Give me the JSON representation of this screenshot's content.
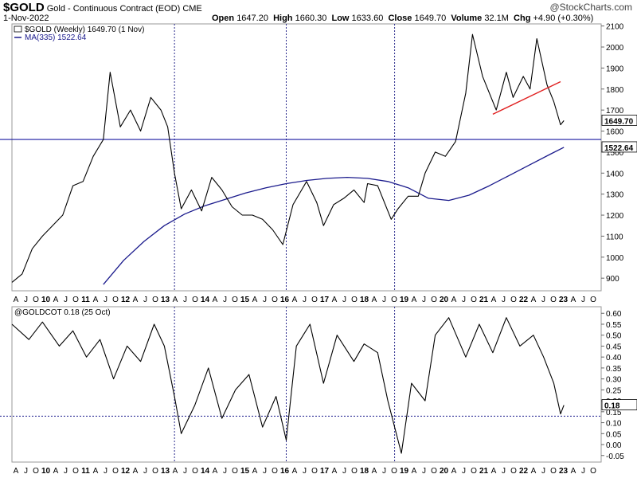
{
  "header": {
    "symbol": "$GOLD",
    "description": "Gold - Continuous Contract (EOD)",
    "exchange": "CME",
    "date": "1-Nov-2022",
    "watermark": "@StockCharts.com",
    "open_label": "Open",
    "open": "1647.20",
    "high_label": "High",
    "high": "1660.30",
    "low_label": "Low",
    "low": "1633.60",
    "close_label": "Close",
    "close": "1649.70",
    "volume_label": "Volume",
    "volume": "32.1M",
    "chg_label": "Chg",
    "chg": "+4.90 (+0.30%)"
  },
  "chart_data": [
    {
      "type": "line",
      "title": "$GOLD (Weekly) 1649.70 (1 Nov)",
      "legend": [
        {
          "text": "$GOLD (Weekly) 1649.70 (1 Nov)",
          "color": "#000000"
        },
        {
          "text": "MA(335) 1522.64",
          "color": "#1a1a8c"
        }
      ],
      "ylim": [
        840,
        2110
      ],
      "yticks": [
        900,
        1000,
        1100,
        1200,
        1300,
        1400,
        1500,
        1600,
        1700,
        1800,
        1900,
        2000,
        2100
      ],
      "last_label": "1649.70",
      "ma_label": "1522.64",
      "hline": 1560,
      "vlines": [
        "2013-04",
        "2016-01",
        "2018-09"
      ],
      "xlim": [
        "2009-04",
        "2023-10"
      ],
      "x_tick_labels": [
        "A",
        "J",
        "O",
        "10",
        "A",
        "J",
        "O",
        "11",
        "A",
        "J",
        "O",
        "12",
        "A",
        "J",
        "O",
        "13",
        "A",
        "J",
        "O",
        "14",
        "A",
        "J",
        "O",
        "15",
        "A",
        "J",
        "O",
        "16",
        "A",
        "J",
        "O",
        "17",
        "A",
        "J",
        "O",
        "18",
        "A",
        "J",
        "O",
        "19",
        "A",
        "J",
        "O",
        "20",
        "A",
        "J",
        "O",
        "21",
        "A",
        "J",
        "O",
        "22",
        "A",
        "J",
        "O",
        "23",
        "A",
        "J",
        "O"
      ],
      "series": [
        {
          "name": "$GOLD (Weekly)",
          "color": "#000000",
          "x": [
            "2009-04",
            "2009-07",
            "2009-10",
            "2010-01",
            "2010-04",
            "2010-07",
            "2010-10",
            "2011-01",
            "2011-04",
            "2011-07",
            "2011-09",
            "2011-12",
            "2012-03",
            "2012-06",
            "2012-09",
            "2012-12",
            "2013-02",
            "2013-04",
            "2013-06",
            "2013-09",
            "2013-12",
            "2014-03",
            "2014-06",
            "2014-09",
            "2014-12",
            "2015-03",
            "2015-06",
            "2015-09",
            "2015-12",
            "2016-03",
            "2016-07",
            "2016-10",
            "2016-12",
            "2017-03",
            "2017-06",
            "2017-09",
            "2017-12",
            "2018-01",
            "2018-04",
            "2018-08",
            "2018-10",
            "2019-01",
            "2019-04",
            "2019-06",
            "2019-09",
            "2019-12",
            "2020-03",
            "2020-06",
            "2020-08",
            "2020-11",
            "2021-03",
            "2021-06",
            "2021-08",
            "2021-11",
            "2022-01",
            "2022-03",
            "2022-06",
            "2022-08",
            "2022-10",
            "2022-11"
          ],
          "values": [
            880,
            920,
            1040,
            1100,
            1150,
            1200,
            1340,
            1360,
            1480,
            1560,
            1880,
            1620,
            1700,
            1600,
            1760,
            1700,
            1620,
            1400,
            1230,
            1320,
            1220,
            1380,
            1320,
            1240,
            1200,
            1200,
            1180,
            1130,
            1060,
            1250,
            1360,
            1260,
            1150,
            1250,
            1280,
            1320,
            1260,
            1350,
            1340,
            1180,
            1230,
            1290,
            1290,
            1400,
            1500,
            1480,
            1550,
            1780,
            2060,
            1860,
            1700,
            1880,
            1760,
            1860,
            1800,
            2040,
            1820,
            1740,
            1630,
            1649.7
          ]
        },
        {
          "name": "MA(335)",
          "color": "#1a1a8c",
          "x": [
            "2011-07",
            "2012-01",
            "2012-07",
            "2013-01",
            "2013-07",
            "2014-01",
            "2014-07",
            "2015-01",
            "2015-07",
            "2016-01",
            "2016-07",
            "2017-01",
            "2017-07",
            "2018-01",
            "2018-07",
            "2019-01",
            "2019-07",
            "2020-01",
            "2020-07",
            "2021-01",
            "2021-07",
            "2022-01",
            "2022-07",
            "2022-11"
          ],
          "values": [
            870,
            985,
            1075,
            1150,
            1205,
            1245,
            1275,
            1305,
            1330,
            1350,
            1365,
            1375,
            1380,
            1375,
            1360,
            1330,
            1280,
            1270,
            1295,
            1340,
            1390,
            1440,
            1490,
            1522.64
          ]
        },
        {
          "name": "trendline",
          "color": "#e02020",
          "x": [
            "2021-02",
            "2022-10"
          ],
          "values": [
            1680,
            1835
          ]
        }
      ]
    },
    {
      "type": "line",
      "title": "@GOLDCOT 0.18 (25 Oct)",
      "ylim": [
        -0.08,
        0.63
      ],
      "yticks": [
        -0.05,
        0.0,
        0.05,
        0.1,
        0.15,
        0.2,
        0.25,
        0.3,
        0.35,
        0.4,
        0.45,
        0.5,
        0.55,
        0.6
      ],
      "ytick_labels": [
        "-0.05",
        "0.00",
        "0.05",
        "0.10",
        "0.15",
        "0.20",
        "0.25",
        "0.30",
        "0.35",
        "0.40",
        "0.45",
        "0.50",
        "0.55",
        "0.60"
      ],
      "last_label": "0.18",
      "hline": 0.13,
      "series": [
        {
          "name": "@GOLDCOT",
          "color": "#000000",
          "x": [
            "2009-04",
            "2009-09",
            "2010-01",
            "2010-06",
            "2010-10",
            "2011-02",
            "2011-06",
            "2011-10",
            "2012-02",
            "2012-06",
            "2012-10",
            "2013-01",
            "2013-04",
            "2013-06",
            "2013-10",
            "2014-02",
            "2014-06",
            "2014-10",
            "2015-02",
            "2015-06",
            "2015-10",
            "2016-01",
            "2016-04",
            "2016-08",
            "2016-12",
            "2017-04",
            "2017-09",
            "2017-12",
            "2018-04",
            "2018-07",
            "2018-09",
            "2018-11",
            "2019-02",
            "2019-06",
            "2019-09",
            "2020-01",
            "2020-06",
            "2020-10",
            "2021-02",
            "2021-06",
            "2021-10",
            "2022-02",
            "2022-05",
            "2022-08",
            "2022-10",
            "2022-11"
          ],
          "values": [
            0.55,
            0.48,
            0.56,
            0.45,
            0.52,
            0.4,
            0.48,
            0.3,
            0.45,
            0.38,
            0.55,
            0.45,
            0.22,
            0.05,
            0.18,
            0.35,
            0.12,
            0.25,
            0.32,
            0.08,
            0.22,
            0.02,
            0.45,
            0.55,
            0.28,
            0.5,
            0.38,
            0.46,
            0.42,
            0.2,
            0.08,
            -0.04,
            0.28,
            0.2,
            0.5,
            0.58,
            0.4,
            0.55,
            0.42,
            0.58,
            0.45,
            0.5,
            0.4,
            0.28,
            0.14,
            0.18
          ]
        }
      ]
    }
  ]
}
